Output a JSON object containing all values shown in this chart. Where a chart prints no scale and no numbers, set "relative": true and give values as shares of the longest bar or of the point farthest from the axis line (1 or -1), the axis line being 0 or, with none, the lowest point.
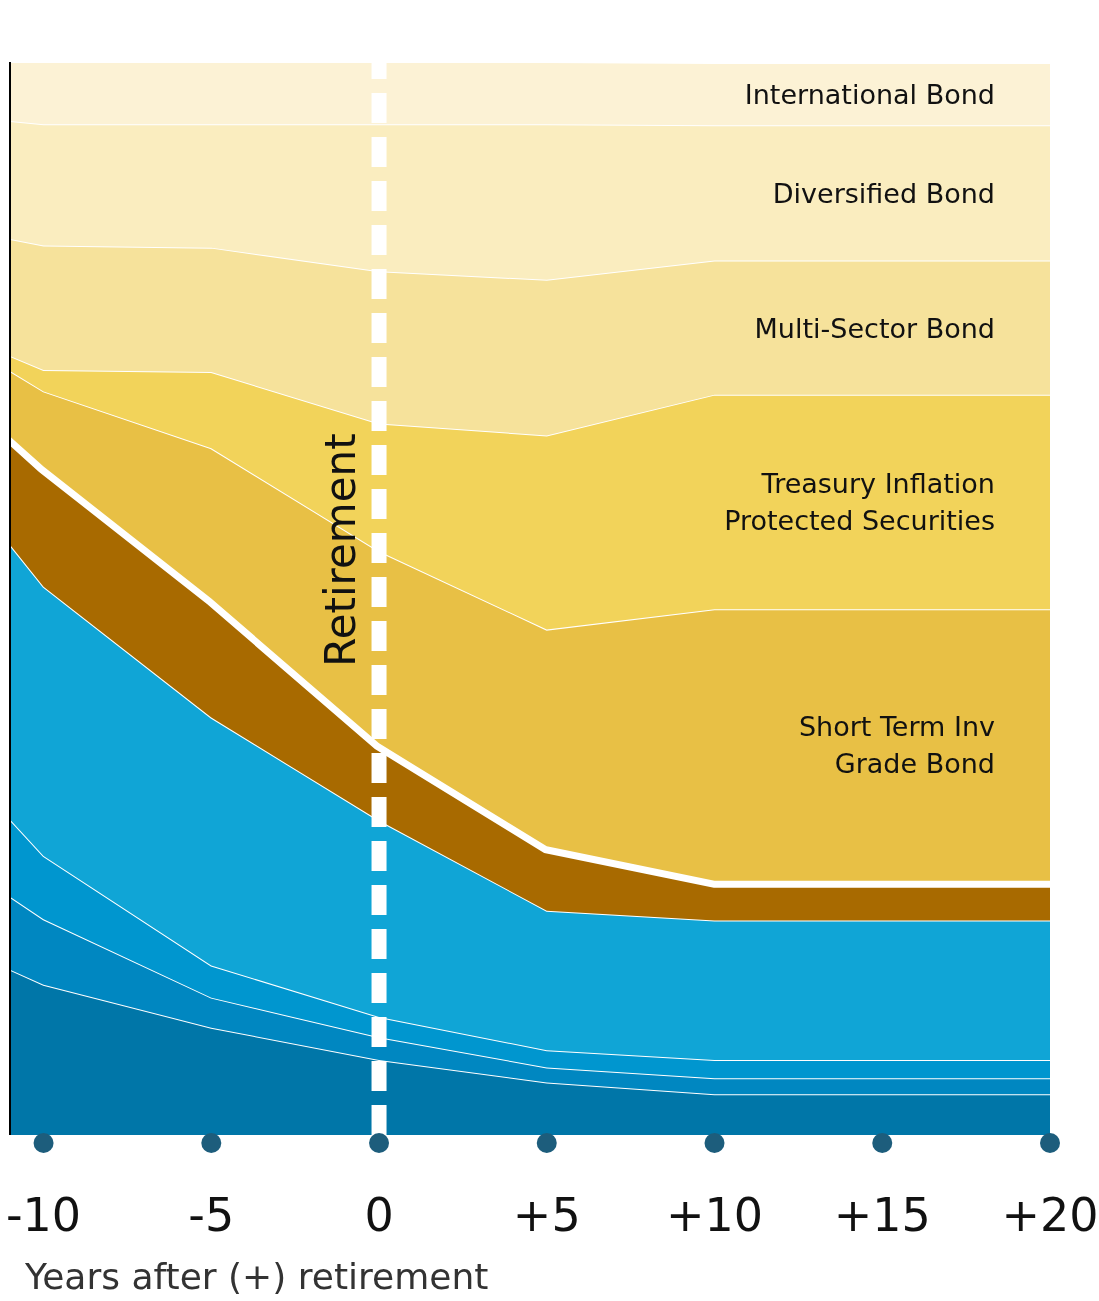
{
  "chart_data": {
    "type": "area",
    "stacked": true,
    "relative": true,
    "xlabel": "Years after (+) retirement",
    "x": [
      -11,
      -10,
      -5,
      0,
      5,
      10,
      20
    ],
    "xlim": [
      -11,
      20
    ],
    "xticks": [
      -10,
      -5,
      0,
      {
        "value": 5,
        "label": "+5"
      },
      {
        "value": 10,
        "label": "+10"
      },
      {
        "value": 15,
        "label": "+15"
      },
      {
        "value": 20,
        "label": "+20"
      }
    ],
    "series": [
      {
        "color": "#0076a8",
        "values": [
          0.154,
          0.14,
          0.1,
          0.07,
          0.049,
          0.038,
          0.038
        ]
      },
      {
        "color": "#0087c1",
        "values": [
          0.068,
          0.061,
          0.028,
          0.021,
          0.014,
          0.015,
          0.015
        ]
      },
      {
        "color": "#0096cf",
        "values": [
          0.072,
          0.059,
          0.03,
          0.019,
          0.016,
          0.017,
          0.017
        ]
      },
      {
        "color": "#10a5d6",
        "values": [
          0.256,
          0.251,
          0.231,
          0.183,
          0.13,
          0.13,
          0.13
        ]
      },
      {
        "color": "#a86a00",
        "values": [
          0.101,
          0.112,
          0.111,
          0.072,
          0.06,
          0.037,
          0.037
        ]
      },
      {
        "name": "Short Term Inv\nGrade Bond",
        "color": "#e8c045",
        "values": [
          0.061,
          0.07,
          0.14,
          0.179,
          0.202,
          0.253,
          0.253
        ]
      },
      {
        "name": "Treasury Inflation\nProtected Securities",
        "color": "#f2d35a",
        "values": [
          0.014,
          0.02,
          0.071,
          0.119,
          0.181,
          0.2,
          0.2
        ]
      },
      {
        "name": "Multi-Sector Bond",
        "color": "#f6e29b",
        "values": [
          0.109,
          0.116,
          0.116,
          0.142,
          0.145,
          0.125,
          0.125
        ]
      },
      {
        "name": "Diversified Bond",
        "color": "#faedbf",
        "values": [
          0.11,
          0.113,
          0.115,
          0.137,
          0.145,
          0.126,
          0.126
        ]
      },
      {
        "name": "International Bond",
        "color": "#fcf2d5",
        "values": [
          0.055,
          0.058,
          0.058,
          0.058,
          0.058,
          0.058,
          0.058
        ]
      }
    ],
    "ref_lines": [
      {
        "axis": "x",
        "value": 0,
        "label": "Retirement",
        "color": "#ffffff",
        "line_style": "dashed"
      }
    ]
  }
}
